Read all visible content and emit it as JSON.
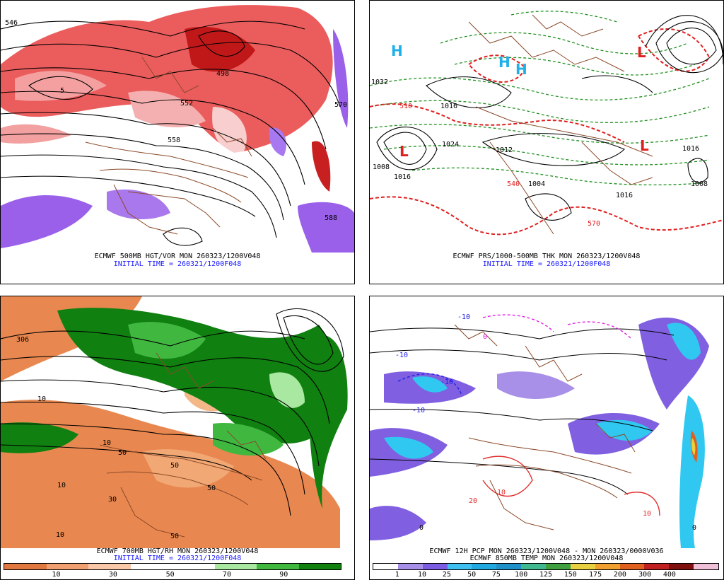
{
  "panels": [
    {
      "id": "p1",
      "caption_line1": "ECMWF 500MB HGT/VOR MON 260323/1200V048",
      "caption_line2": "INITIAL TIME = 260321/1200F048",
      "contour_labels": [
        "546",
        "552",
        "558",
        "570",
        "498",
        "588",
        "5"
      ]
    },
    {
      "id": "p2",
      "caption_line1": "ECMWF PRS/1000-500MB THK MON 260323/1200V048",
      "caption_line2": "INITIAL TIME = 260321/1200F048",
      "contour_labels": [
        "1032",
        "1016",
        "1024",
        "1008",
        "1016",
        "1016",
        "1008",
        "1004",
        "1012",
        "1016",
        "510",
        "540",
        "570"
      ],
      "markers": [
        "H",
        "H",
        "H",
        "L",
        "L",
        "L"
      ]
    },
    {
      "id": "p3",
      "caption_line1": "ECMWF 700MB HGT/RH MON 260323/1200V048",
      "caption_line2": "INITIAL TIME = 260321/1200F048",
      "contour_labels": [
        "10",
        "30",
        "50",
        "10",
        "10",
        "50",
        "50",
        "10",
        "50",
        "306"
      ],
      "scale_colors": [
        "#e07840",
        "#f0a070",
        "#f8c8a8",
        "#ffffff",
        "#ffffff",
        "#a8e8a0",
        "#40b840",
        "#108010"
      ],
      "scale_ticks": [
        "10",
        "30",
        "50",
        "70",
        "90"
      ]
    },
    {
      "id": "p4",
      "caption_line1": "ECMWF 12H PCP MON 260323/1200V048 - MON 260323/0000V036",
      "caption_line2": "ECMWF 850MB TEMP MON 260323/1200V048",
      "contour_labels": [
        "-10",
        "-10",
        "-10",
        "-10",
        "0",
        "0",
        "10",
        "20",
        "10",
        "0"
      ],
      "scale_colors": [
        "#ffffff",
        "#a890e8",
        "#7c5ce0",
        "#40c0f0",
        "#20a8e0",
        "#2090c8",
        "#40b890",
        "#40a040",
        "#e8d040",
        "#f0a030",
        "#e06020",
        "#c02020",
        "#801010",
        "#f0c0d8"
      ],
      "scale_ticks": [
        "1",
        "10",
        "25",
        "50",
        "75",
        "100",
        "125",
        "150",
        "175",
        "200",
        "300",
        "400"
      ]
    }
  ],
  "colors": {
    "vorticity": "#e03030",
    "vorticity_light": "#f4a0a0",
    "negative_vort": "#9050e8",
    "rh_dry": "#e88850",
    "rh_moist": "#108010",
    "rh_mid": "#48c048",
    "pcp_purple": "#8060e0",
    "pcp_cyan": "#30c8f0",
    "thickness": "#e02020",
    "dashed_green": "#209020",
    "borders": "#8b4a2a"
  }
}
